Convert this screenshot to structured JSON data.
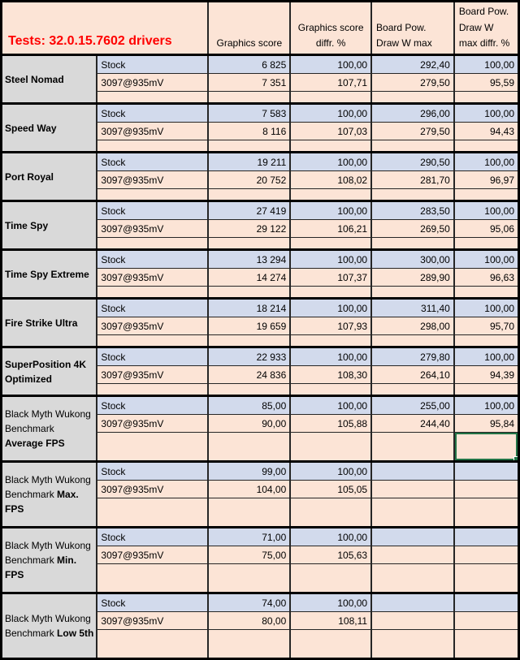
{
  "header": {
    "title": "Tests: 32.0.15.7602 drivers",
    "columns": [
      "Graphics score",
      "Graphics score\ndiffr. %",
      "Board Pow.\nDraw W max",
      "Board Pow.\nDraw W\nmax diffr. %"
    ]
  },
  "variant_labels": {
    "stock": "Stock",
    "oc": "3097@935mV"
  },
  "groups": [
    {
      "id": "steel-nomad",
      "tall": false,
      "label": [
        {
          "text": "Steel Nomad",
          "bold": true
        }
      ],
      "stock": [
        "6 825",
        "100,00",
        "292,40",
        "100,00"
      ],
      "oc": [
        "7 351",
        "107,71",
        "279,50",
        "95,59"
      ]
    },
    {
      "id": "speed-way",
      "tall": false,
      "label": [
        {
          "text": "Speed Way",
          "bold": true
        }
      ],
      "stock": [
        "7 583",
        "100,00",
        "296,00",
        "100,00"
      ],
      "oc": [
        "8 116",
        "107,03",
        "279,50",
        "94,43"
      ]
    },
    {
      "id": "port-royal",
      "tall": false,
      "label": [
        {
          "text": "Port Royal",
          "bold": true
        }
      ],
      "stock": [
        "19 211",
        "100,00",
        "290,50",
        "100,00"
      ],
      "oc": [
        "20 752",
        "108,02",
        "281,70",
        "96,97"
      ]
    },
    {
      "id": "time-spy",
      "tall": false,
      "label": [
        {
          "text": "Time Spy",
          "bold": true
        }
      ],
      "stock": [
        "27 419",
        "100,00",
        "283,50",
        "100,00"
      ],
      "oc": [
        "29 122",
        "106,21",
        "269,50",
        "95,06"
      ]
    },
    {
      "id": "time-spy-extreme",
      "tall": false,
      "label": [
        {
          "text": "Time Spy Extreme",
          "bold": true
        }
      ],
      "stock": [
        "13 294",
        "100,00",
        "300,00",
        "100,00"
      ],
      "oc": [
        "14 274",
        "107,37",
        "289,90",
        "96,63"
      ]
    },
    {
      "id": "fire-strike-ultra",
      "tall": false,
      "label": [
        {
          "text": "Fire Strike Ultra",
          "bold": true
        }
      ],
      "stock": [
        "18 214",
        "100,00",
        "311,40",
        "100,00"
      ],
      "oc": [
        "19 659",
        "107,93",
        "298,00",
        "95,70"
      ]
    },
    {
      "id": "superposition-4k-optimized",
      "tall": false,
      "label": [
        {
          "text": "SuperPosition 4K Optimized",
          "bold": true
        }
      ],
      "stock": [
        "22 933",
        "100,00",
        "279,80",
        "100,00"
      ],
      "oc": [
        "24 836",
        "108,30",
        "264,10",
        "94,39"
      ]
    },
    {
      "id": "black-myth-wukong-average-fps",
      "tall": true,
      "label": [
        {
          "text": "Black Myth Wukong Benchmark ",
          "bold": false
        },
        {
          "text": "Average FPS",
          "bold": true
        }
      ],
      "stock": [
        "85,00",
        "100,00",
        "255,00",
        "100,00"
      ],
      "oc": [
        "90,00",
        "105,88",
        "244,40",
        "95,84"
      ]
    },
    {
      "id": "black-myth-wukong-max-fps",
      "tall": true,
      "label": [
        {
          "text": "Black Myth Wukong Benchmark ",
          "bold": false
        },
        {
          "text": "Max. FPS",
          "bold": true
        }
      ],
      "stock": [
        "99,00",
        "100,00",
        "",
        ""
      ],
      "oc": [
        "104,00",
        "105,05",
        "",
        ""
      ]
    },
    {
      "id": "black-myth-wukong-min-fps",
      "tall": true,
      "label": [
        {
          "text": "Black Myth Wukong Benchmark ",
          "bold": false
        },
        {
          "text": "Min. FPS",
          "bold": true
        }
      ],
      "stock": [
        "71,00",
        "100,00",
        "",
        ""
      ],
      "oc": [
        "75,00",
        "105,63",
        "",
        ""
      ]
    },
    {
      "id": "black-myth-wukong-low-5th",
      "tall": true,
      "label": [
        {
          "text": "Black Myth Wukong Benchmark ",
          "bold": false
        },
        {
          "text": "Low 5th",
          "bold": true
        }
      ],
      "stock": [
        "74,00",
        "100,00",
        "",
        ""
      ],
      "oc": [
        "80,00",
        "108,11",
        "",
        ""
      ]
    }
  ],
  "selection": {
    "group_index": 7,
    "row": "spacer",
    "col_index": 3
  },
  "colors": {
    "cell_peach": "#fce4d6",
    "stock_blue": "#d2daec",
    "label_gray": "#d9d9d9",
    "title_red": "#ff0000",
    "selection_green": "#217346",
    "grid_black": "#000000"
  }
}
